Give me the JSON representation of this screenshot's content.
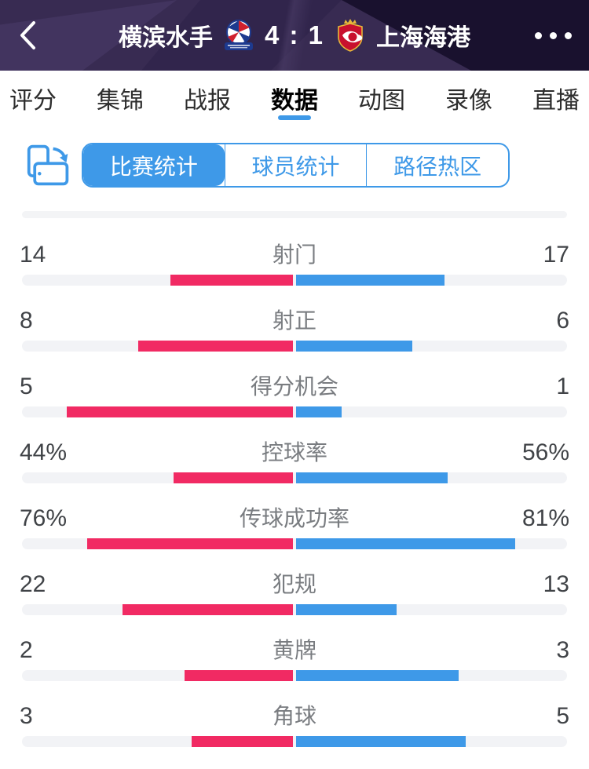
{
  "header": {
    "team_home": "横滨水手",
    "score": "4 : 1",
    "team_away": "上海海港",
    "home_logo": "yokohama-marinos-crest",
    "away_logo": "shanghai-port-crest",
    "back_icon": "chevron-left",
    "menu_icon": "ellipsis"
  },
  "tabs": {
    "labels": [
      "评分",
      "集锦",
      "战报",
      "数据",
      "动图",
      "录像",
      "直播"
    ],
    "active": "数据"
  },
  "subtabs": {
    "rotate_icon": "rotate-screen",
    "labels": [
      "比赛统计",
      "球员统计",
      "路径热区"
    ],
    "active": "比赛统计"
  },
  "colors": {
    "accent_blue": "#3e99e8",
    "home_pink": "#f12a63",
    "header_purple": "#382b52",
    "track_gray": "#f2f3f6"
  },
  "chart_data": {
    "type": "bar",
    "title": "比赛统计",
    "orientation": "horizontal-split",
    "teams": {
      "home": "横滨水手",
      "away": "上海海港"
    },
    "legend": {
      "home_color": "#f12a63",
      "away_color": "#3e99e8"
    },
    "rows": [
      {
        "label": "射门",
        "home": 14,
        "away": 17,
        "home_display": "14",
        "away_display": "17",
        "scale": "share"
      },
      {
        "label": "射正",
        "home": 8,
        "away": 6,
        "home_display": "8",
        "away_display": "6",
        "scale": "share"
      },
      {
        "label": "得分机会",
        "home": 5,
        "away": 1,
        "home_display": "5",
        "away_display": "1",
        "scale": "share"
      },
      {
        "label": "控球率",
        "home": 44,
        "away": 56,
        "home_display": "44%",
        "away_display": "56%",
        "scale": "percent"
      },
      {
        "label": "传球成功率",
        "home": 76,
        "away": 81,
        "home_display": "76%",
        "away_display": "81%",
        "scale": "percent"
      },
      {
        "label": "犯规",
        "home": 22,
        "away": 13,
        "home_display": "22",
        "away_display": "13",
        "scale": "share"
      },
      {
        "label": "黄牌",
        "home": 2,
        "away": 3,
        "home_display": "2",
        "away_display": "3",
        "scale": "share"
      },
      {
        "label": "角球",
        "home": 3,
        "away": 5,
        "home_display": "3",
        "away_display": "5",
        "scale": "share"
      }
    ]
  }
}
